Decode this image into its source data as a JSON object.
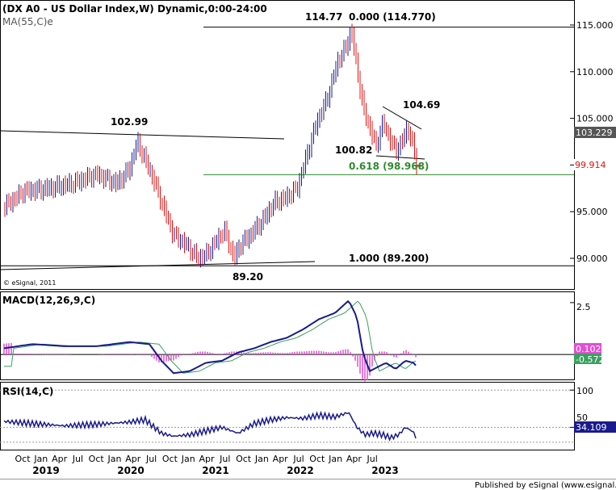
{
  "chart_data": [
    {
      "type": "candlestick",
      "title": "(DX A0 - US Dollar Index,W) Dynamic,0:00-24:00",
      "overlay_label": "MA(55,C)e",
      "copyright": "© eSignal, 2011",
      "ylim": [
        88,
        117
      ],
      "y_ticks": [
        "115.000",
        "110.000",
        "105.000",
        "100.000",
        "95.000",
        "90.000"
      ],
      "y_tick_values": [
        115,
        110,
        105,
        100,
        95,
        90
      ],
      "last_close_label": "99.914",
      "ma_last_label": "103.229",
      "annotations": [
        {
          "text": "102.99",
          "value": 102.99
        },
        {
          "text": "114.77",
          "value": 114.77
        },
        {
          "text": "0.000 (114.770)",
          "value": 114.77
        },
        {
          "text": "104.69",
          "value": 104.69
        },
        {
          "text": "100.82",
          "value": 100.82
        },
        {
          "text": "0.618 (98.968)",
          "value": 98.968
        },
        {
          "text": "1.000 (89.200)",
          "value": 89.2
        },
        {
          "text": "89.20",
          "value": 89.2
        }
      ],
      "colors": {
        "up": "#1a1a8c",
        "down": "#e01010",
        "ma": "#555555",
        "fib_green": "#2e8b2e",
        "close_marker": "#e01010"
      }
    },
    {
      "type": "line",
      "title": "MACD(12,26,9,C)",
      "ylim": [
        -1.2,
        3.0
      ],
      "y_ticks": [
        "2.5"
      ],
      "y_tick_values": [
        2.5
      ],
      "hist_label": "0.102",
      "macd_label": "-0.572",
      "colors": {
        "macd": "#1a1a8c",
        "signal": "#3aa060",
        "hist": "#e050d0"
      }
    },
    {
      "type": "line",
      "title": "RSI(14,C)",
      "ylim": [
        20,
        110
      ],
      "y_ticks": [
        "100",
        "50"
      ],
      "y_tick_values": [
        100,
        50
      ],
      "last_label": "34.109",
      "colors": {
        "rsi": "#1a1a8c"
      }
    }
  ],
  "x_axis": {
    "months": [
      "Oct",
      "Jan",
      "Apr",
      "Jul",
      "Oct",
      "Jan",
      "Apr",
      "Jul",
      "Oct",
      "Jan",
      "Apr",
      "Jul",
      "Oct",
      "Jan",
      "Apr",
      "Jul",
      "Oct",
      "Jan",
      "Apr",
      "Jul"
    ],
    "years": [
      "2019",
      "2020",
      "2021",
      "2022",
      "2023"
    ]
  },
  "footer": "Published by eSignal (www.esignal.com)"
}
